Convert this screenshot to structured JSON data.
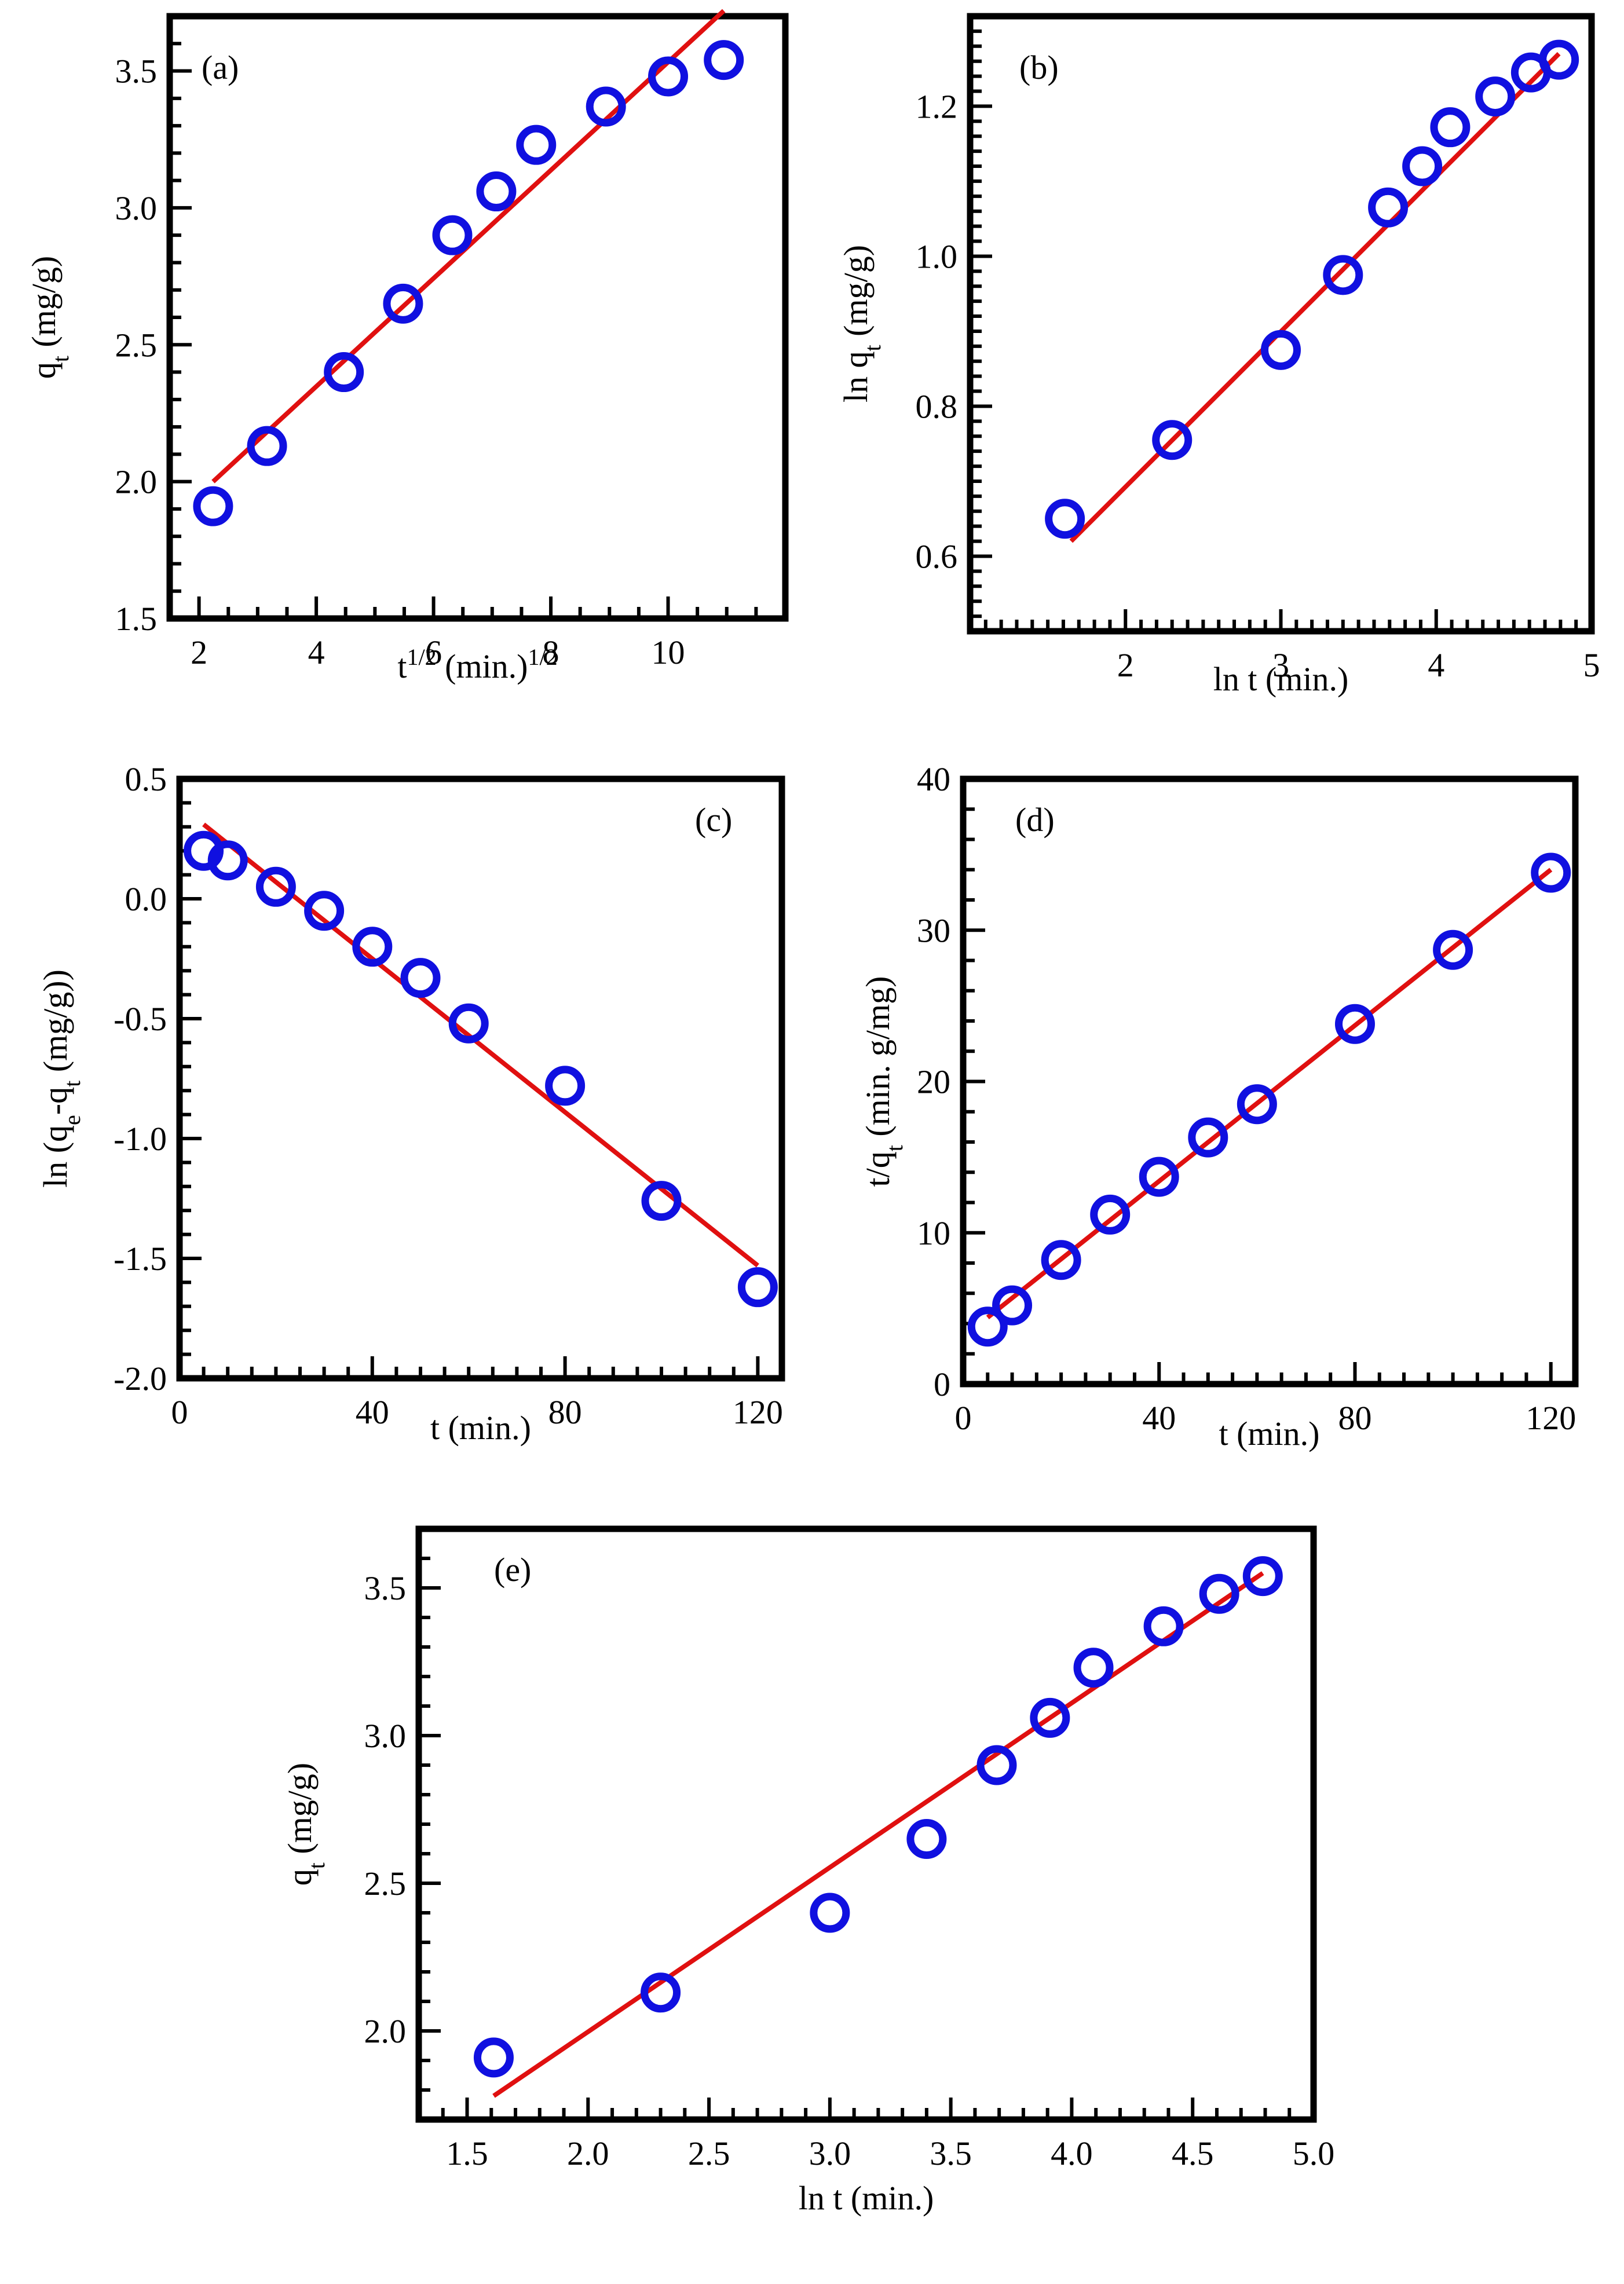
{
  "colors": {
    "marker": "#1010e0",
    "fit": "#e01010",
    "axis": "#000000"
  },
  "chart_data": [
    {
      "type": "scatter",
      "panel": "(a)",
      "xlim": [
        1.5,
        12
      ],
      "ylim": [
        1.5,
        3.7
      ],
      "xticks": [
        2,
        4,
        6,
        8,
        10
      ],
      "yticks": [
        1.5,
        2.0,
        2.5,
        3.0,
        3.5
      ],
      "xtick_labels": [
        "2",
        "4",
        "6",
        "8",
        "10"
      ],
      "ytick_labels": [
        "1.5",
        "2.0",
        "2.5",
        "3.0",
        "3.5"
      ],
      "x_minor_step": 0.5,
      "y_minor_step": 0.1,
      "xlabel": {
        "main": "t",
        "sup": "1/2",
        "mid": " (min.)",
        "sup2": "1/2"
      },
      "ylabel": {
        "main": "q",
        "sub": "t",
        "rest": " (mg/g)"
      },
      "series": [
        {
          "name": "data",
          "x": [
            2.24,
            3.16,
            4.47,
            5.48,
            6.32,
            7.07,
            7.75,
            8.94,
            10.0,
            10.95
          ],
          "y": [
            1.91,
            2.13,
            2.4,
            2.65,
            2.9,
            3.06,
            3.23,
            3.37,
            3.48,
            3.54
          ]
        }
      ],
      "fit": {
        "x": [
          2.24,
          10.95
        ],
        "y": [
          2.0,
          3.72
        ]
      }
    },
    {
      "type": "scatter",
      "panel": "(b)",
      "xlim": [
        1.0,
        5.0
      ],
      "ylim": [
        0.5,
        1.32
      ],
      "xticks": [
        2,
        3,
        4,
        5
      ],
      "yticks": [
        0.6,
        0.8,
        1.0,
        1.2
      ],
      "xtick_labels": [
        "2",
        "3",
        "4",
        "5"
      ],
      "ytick_labels": [
        "0.6",
        "0.8",
        "1.0",
        "1.2"
      ],
      "x_minor_step": 0.1,
      "y_minor_step": 0.02,
      "xlabel": {
        "main": "ln t  (min.)"
      },
      "ylabel": {
        "main": "ln q",
        "sub": "t",
        "rest": " (mg/g)"
      },
      "series": [
        {
          "name": "data",
          "x": [
            1.61,
            2.3,
            3.0,
            3.4,
            3.69,
            3.91,
            4.09,
            4.38,
            4.61,
            4.79
          ],
          "y": [
            0.65,
            0.755,
            0.875,
            0.975,
            1.065,
            1.12,
            1.172,
            1.213,
            1.245,
            1.262
          ]
        }
      ],
      "fit": {
        "x": [
          1.65,
          4.79
        ],
        "y": [
          0.62,
          1.27
        ]
      }
    },
    {
      "type": "scatter",
      "panel": "(c)",
      "xlim": [
        0,
        125
      ],
      "ylim": [
        -2.0,
        0.5
      ],
      "xticks": [
        0,
        40,
        80,
        120
      ],
      "yticks": [
        -2.0,
        -1.5,
        -1.0,
        -0.5,
        0.0,
        0.5
      ],
      "xtick_labels": [
        "0",
        "40",
        "80",
        "120"
      ],
      "ytick_labels": [
        "-2.0",
        "-1.5",
        "-1.0",
        "-0.5",
        "0.0",
        "0.5"
      ],
      "x_minor_step": 5,
      "y_minor_step": 0.1,
      "xlabel": {
        "main": "t (min.)"
      },
      "ylabel": {
        "main": "ln (q",
        "sub": "e",
        "mid": "-q",
        "sub2": "t",
        "rest": " (mg/g))"
      },
      "series": [
        {
          "name": "data",
          "x": [
            5,
            10,
            20,
            30,
            40,
            50,
            60,
            80,
            100,
            120
          ],
          "y": [
            0.2,
            0.16,
            0.05,
            -0.05,
            -0.2,
            -0.33,
            -0.52,
            -0.78,
            -1.26,
            -1.62
          ]
        }
      ],
      "fit": {
        "x": [
          5,
          120
        ],
        "y": [
          0.31,
          -1.53
        ]
      }
    },
    {
      "type": "scatter",
      "panel": "(d)",
      "xlim": [
        0,
        125
      ],
      "ylim": [
        0,
        40
      ],
      "xticks": [
        0,
        40,
        80,
        120
      ],
      "yticks": [
        0,
        10,
        20,
        30,
        40
      ],
      "xtick_labels": [
        "0",
        "40",
        "80",
        "120"
      ],
      "ytick_labels": [
        "0",
        "10",
        "20",
        "30",
        "40"
      ],
      "x_minor_step": 5,
      "y_minor_step": 2,
      "xlabel": {
        "main": "t (min.)"
      },
      "ylabel": {
        "main": "t/q",
        "sub": "t",
        "rest": " (min. g/mg)"
      },
      "series": [
        {
          "name": "data",
          "x": [
            5,
            10,
            20,
            30,
            40,
            50,
            60,
            80,
            100,
            120
          ],
          "y": [
            3.8,
            5.2,
            8.2,
            11.2,
            13.7,
            16.3,
            18.5,
            23.8,
            28.7,
            33.8
          ]
        }
      ],
      "fit": {
        "x": [
          5,
          120
        ],
        "y": [
          4.4,
          34.0
        ]
      }
    },
    {
      "type": "scatter",
      "panel": "(e)",
      "xlim": [
        1.3,
        5.0
      ],
      "ylim": [
        1.7,
        3.7
      ],
      "xticks": [
        1.5,
        2.0,
        2.5,
        3.0,
        3.5,
        4.0,
        4.5,
        5.0
      ],
      "yticks": [
        2.0,
        2.5,
        3.0,
        3.5
      ],
      "xtick_labels": [
        "1.5",
        "2.0",
        "2.5",
        "3.0",
        "3.5",
        "4.0",
        "4.5",
        "5.0"
      ],
      "ytick_labels": [
        "2.0",
        "2.5",
        "3.0",
        "3.5"
      ],
      "x_minor_step": 0.1,
      "y_minor_step": 0.1,
      "xlabel": {
        "main": "ln t  (min.)"
      },
      "ylabel": {
        "main": "q",
        "sub": "t",
        "rest": " (mg/g)"
      },
      "series": [
        {
          "name": "data",
          "x": [
            1.61,
            2.3,
            3.0,
            3.4,
            3.69,
            3.91,
            4.09,
            4.38,
            4.61,
            4.79
          ],
          "y": [
            1.91,
            2.13,
            2.4,
            2.65,
            2.9,
            3.06,
            3.23,
            3.37,
            3.48,
            3.54
          ]
        }
      ],
      "fit": {
        "x": [
          1.61,
          4.79
        ],
        "y": [
          1.78,
          3.55
        ]
      }
    }
  ]
}
